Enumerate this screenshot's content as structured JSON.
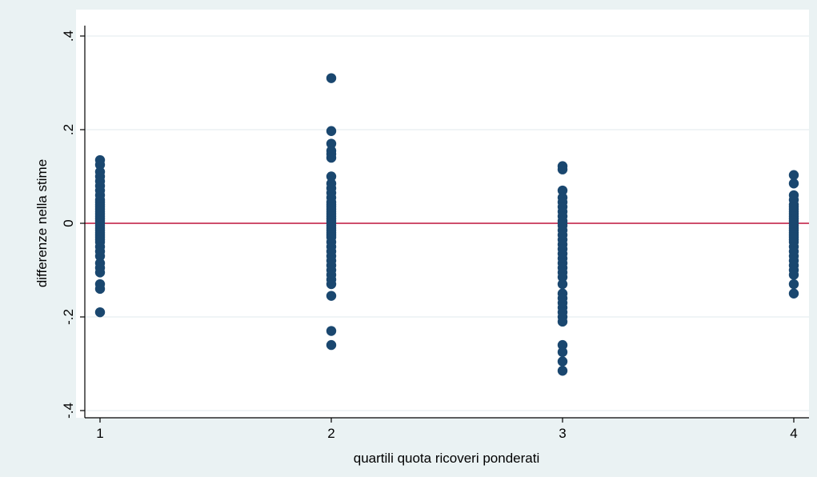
{
  "chart_data": {
    "type": "scatter",
    "title": "",
    "xlabel": "quartili quota ricoveri ponderati",
    "ylabel": "differenze nella stime",
    "xlim": [
      1,
      4
    ],
    "ylim": [
      -0.4,
      0.4
    ],
    "x_ticks": [
      1,
      2,
      3,
      4
    ],
    "x_tick_labels": [
      "1",
      "2",
      "3",
      "4"
    ],
    "y_ticks": [
      -0.4,
      -0.2,
      0,
      0.2,
      0.4
    ],
    "y_tick_labels": [
      "-.4",
      "-.2",
      "0",
      ".2",
      ".4"
    ],
    "grid": true,
    "reference_line": {
      "y": 0,
      "color": "#c0143c"
    },
    "colors": {
      "outer_background": "#eaf2f3",
      "plot_background": "#ffffff",
      "grid": "#e8eef0",
      "points": "#1a476f",
      "axis": "#000000"
    },
    "series": [
      {
        "x": 1,
        "values": [
          0.135,
          0.125,
          0.11,
          0.1,
          0.09,
          0.08,
          0.07,
          0.06,
          0.05,
          0.045,
          0.04,
          0.035,
          0.03,
          0.025,
          0.02,
          0.015,
          0.01,
          0.005,
          0.0,
          -0.005,
          -0.01,
          -0.015,
          -0.02,
          -0.025,
          -0.03,
          -0.035,
          -0.04,
          -0.05,
          -0.06,
          -0.07,
          -0.085,
          -0.095,
          -0.105,
          -0.13,
          -0.14,
          -0.19
        ]
      },
      {
        "x": 2,
        "values": [
          0.31,
          0.197,
          0.17,
          0.155,
          0.148,
          0.14,
          0.1,
          0.085,
          0.075,
          0.065,
          0.055,
          0.045,
          0.04,
          0.035,
          0.03,
          0.025,
          0.02,
          0.015,
          0.01,
          0.005,
          0.0,
          -0.005,
          -0.01,
          -0.015,
          -0.02,
          -0.025,
          -0.03,
          -0.04,
          -0.05,
          -0.06,
          -0.07,
          -0.08,
          -0.09,
          -0.1,
          -0.11,
          -0.12,
          -0.13,
          -0.155,
          -0.23,
          -0.26
        ]
      },
      {
        "x": 3,
        "values": [
          0.122,
          0.115,
          0.07,
          0.055,
          0.045,
          0.035,
          0.025,
          0.015,
          0.005,
          0.0,
          -0.005,
          -0.015,
          -0.025,
          -0.035,
          -0.045,
          -0.055,
          -0.065,
          -0.075,
          -0.085,
          -0.095,
          -0.105,
          -0.115,
          -0.13,
          -0.15,
          -0.16,
          -0.17,
          -0.18,
          -0.19,
          -0.2,
          -0.21,
          -0.26,
          -0.275,
          -0.295,
          -0.315
        ]
      },
      {
        "x": 4,
        "values": [
          0.103,
          0.085,
          0.06,
          0.05,
          0.04,
          0.035,
          0.03,
          0.025,
          0.02,
          0.015,
          0.01,
          0.005,
          0.0,
          -0.005,
          -0.01,
          -0.015,
          -0.02,
          -0.025,
          -0.03,
          -0.035,
          -0.04,
          -0.05,
          -0.06,
          -0.07,
          -0.08,
          -0.09,
          -0.1,
          -0.11,
          -0.13,
          -0.15
        ]
      }
    ]
  }
}
